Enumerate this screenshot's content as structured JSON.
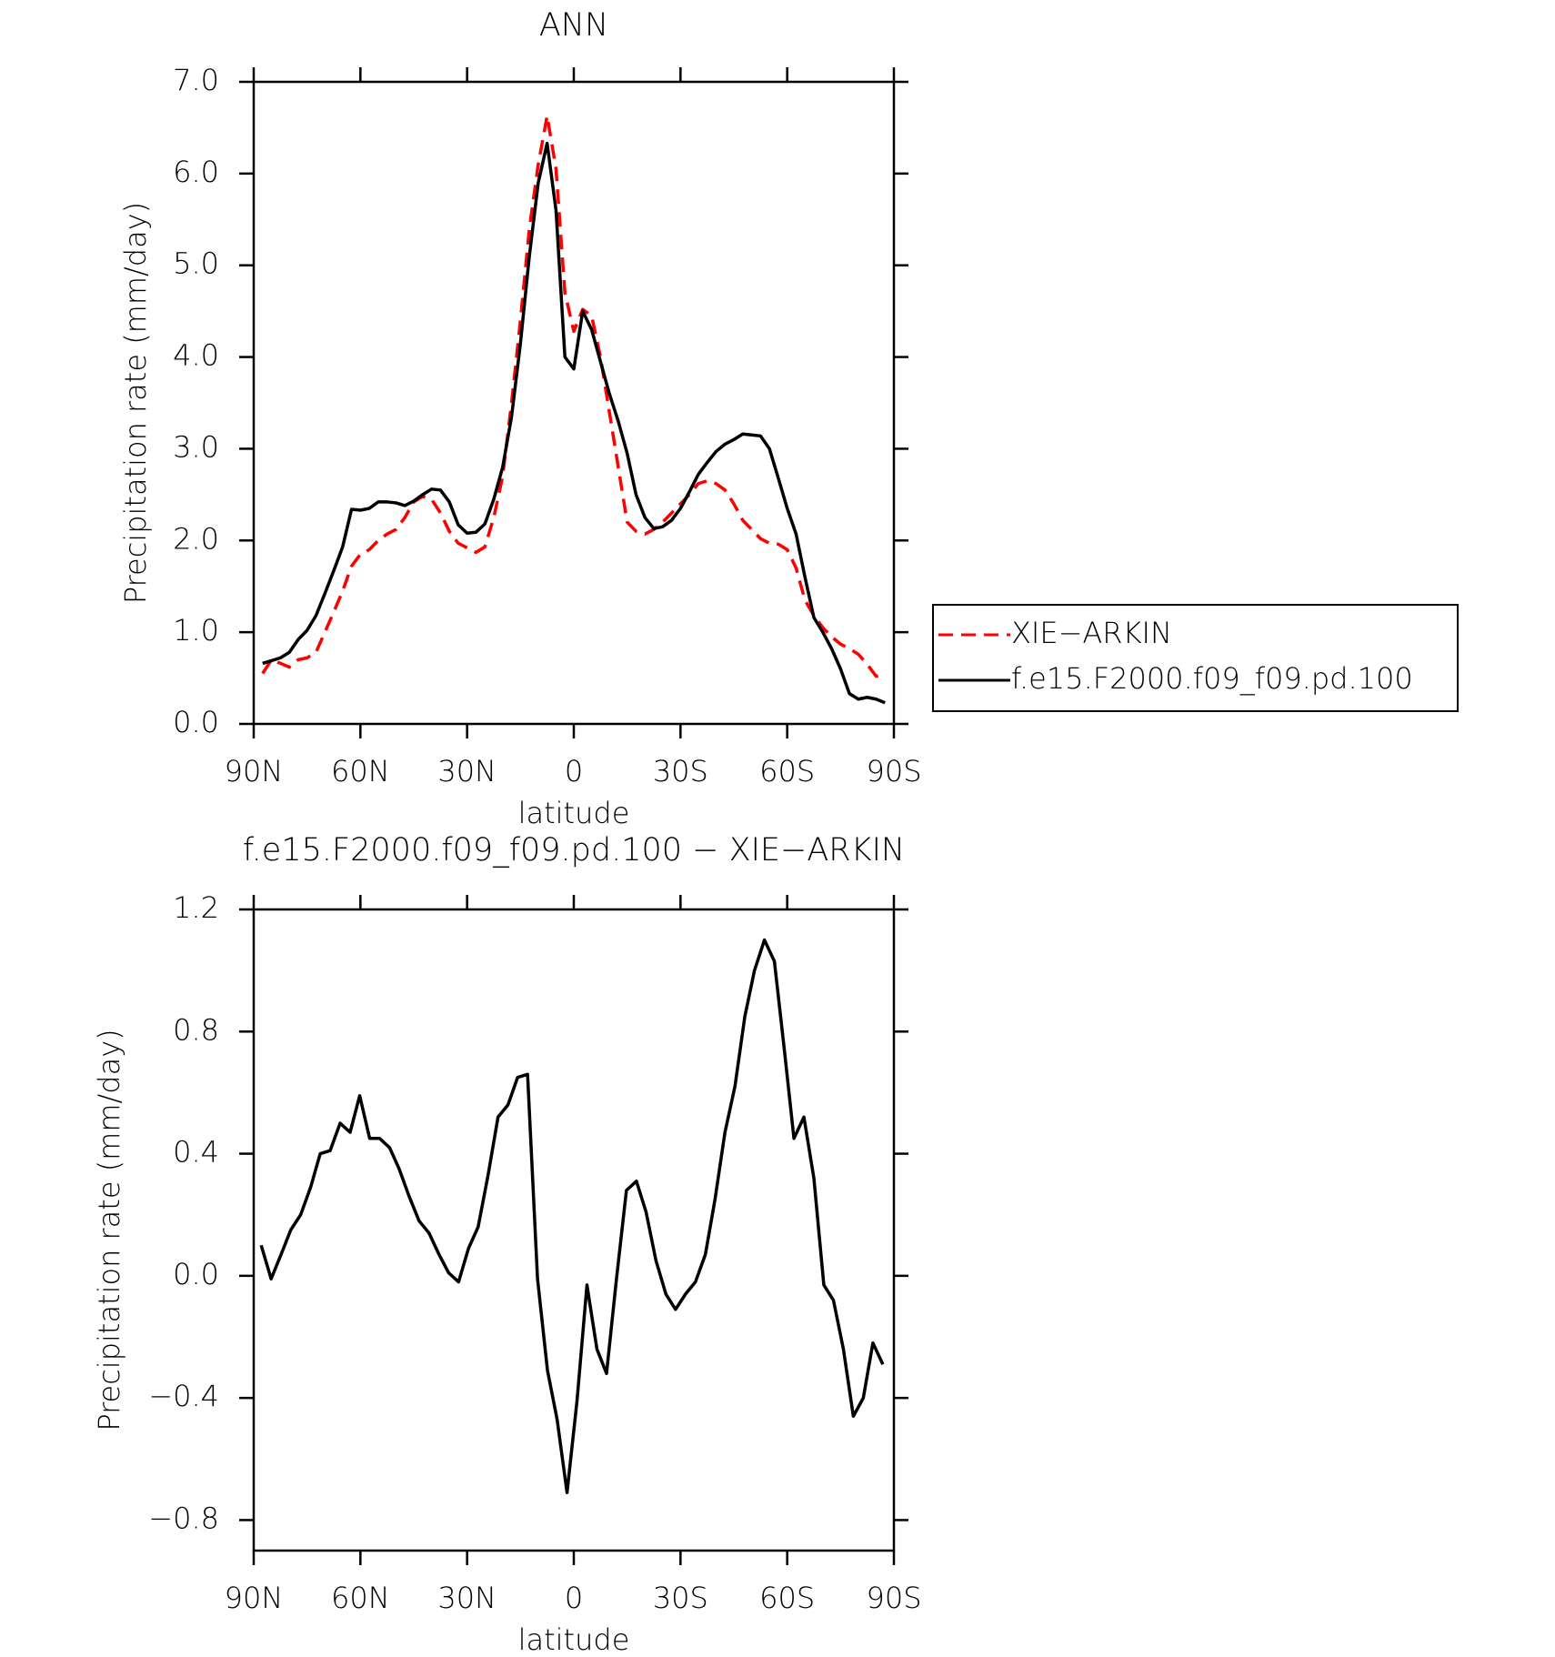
{
  "chart_data": [
    {
      "type": "line",
      "title": "ANN",
      "xlabel": "latitude",
      "ylabel": "Precipitation rate (mm/day)",
      "x": [
        87.5,
        85,
        82.5,
        80,
        77.5,
        75,
        72.5,
        70,
        67.5,
        65,
        62.5,
        60,
        57.5,
        55,
        52.5,
        50,
        47.5,
        45,
        42.5,
        40,
        37.5,
        35,
        32.5,
        30,
        27.5,
        25,
        22.5,
        20,
        17.5,
        15,
        12.5,
        10,
        7.5,
        5,
        2.5,
        0,
        -2.5,
        -5,
        -7.5,
        -10,
        -12.5,
        -15,
        -17.5,
        -20,
        -22.5,
        -25,
        -27.5,
        -30,
        -32.5,
        -35,
        -37.5,
        -40,
        -42.5,
        -45,
        -47.5,
        -50,
        -52.5,
        -55,
        -57.5,
        -60,
        -62.5,
        -65,
        -67.5,
        -70,
        -72.5,
        -75,
        -77.5,
        -80,
        -82.5,
        -85,
        -87.5
      ],
      "series": [
        {
          "name": "XIE−ARKIN",
          "color": "#ff0000",
          "line_style": "dashed",
          "values": [
            0.55,
            0.7,
            0.66,
            0.62,
            0.7,
            0.72,
            0.78,
            1.0,
            1.22,
            1.45,
            1.72,
            1.85,
            1.9,
            2.0,
            2.07,
            2.12,
            2.25,
            2.42,
            2.48,
            2.45,
            2.3,
            2.1,
            1.97,
            1.92,
            1.87,
            1.93,
            2.25,
            2.7,
            3.5,
            4.4,
            5.4,
            6.1,
            6.63,
            6.05,
            4.7,
            4.28,
            4.52,
            4.45,
            4.0,
            3.4,
            2.8,
            2.2,
            2.1,
            2.07,
            2.12,
            2.2,
            2.3,
            2.4,
            2.5,
            2.62,
            2.65,
            2.62,
            2.55,
            2.4,
            2.22,
            2.12,
            2.02,
            1.97,
            1.96,
            1.9,
            1.7,
            1.35,
            1.18,
            1.05,
            0.95,
            0.87,
            0.82,
            0.76,
            0.65,
            0.52,
            0.53
          ]
        },
        {
          "name": "f.e15.F2000.f09_f09.pd.100",
          "color": "#000000",
          "line_style": "solid",
          "values": [
            0.66,
            0.69,
            0.72,
            0.78,
            0.92,
            1.02,
            1.18,
            1.42,
            1.67,
            1.93,
            2.34,
            2.33,
            2.35,
            2.42,
            2.42,
            2.41,
            2.38,
            2.43,
            2.5,
            2.56,
            2.55,
            2.42,
            2.17,
            2.08,
            2.09,
            2.18,
            2.45,
            2.8,
            3.35,
            4.15,
            5.1,
            5.9,
            6.33,
            5.6,
            4.0,
            3.87,
            4.5,
            4.3,
            3.95,
            3.6,
            3.3,
            2.95,
            2.5,
            2.25,
            2.13,
            2.15,
            2.22,
            2.35,
            2.53,
            2.72,
            2.85,
            2.97,
            3.05,
            3.1,
            3.16,
            3.15,
            3.14,
            3.0,
            2.68,
            2.35,
            2.07,
            1.6,
            1.16,
            1.0,
            0.82,
            0.6,
            0.33,
            0.27,
            0.29,
            0.27,
            0.23
          ]
        }
      ],
      "xlim": [
        90,
        -90
      ],
      "xticks": [
        {
          "value": 90,
          "label": "90N"
        },
        {
          "value": 60,
          "label": "60N"
        },
        {
          "value": 30,
          "label": "30N"
        },
        0,
        {
          "value": -30,
          "label": "30S"
        },
        {
          "value": -60,
          "label": "60S"
        },
        {
          "value": -90,
          "label": "90S"
        }
      ],
      "ylim": [
        0,
        7
      ],
      "yticks": [
        {
          "value": 0,
          "label": "0.0"
        },
        {
          "value": 1,
          "label": "1.0"
        },
        {
          "value": 2,
          "label": "2.0"
        },
        {
          "value": 3,
          "label": "3.0"
        },
        {
          "value": 4,
          "label": "4.0"
        },
        {
          "value": 5,
          "label": "5.0"
        },
        {
          "value": 6,
          "label": "6.0"
        },
        {
          "value": 7,
          "label": "7.0"
        }
      ],
      "grid": false,
      "legend": "right"
    },
    {
      "type": "line",
      "title": "f.e15.F2000.f09_f09.pd.100 − XIE−ARKIN",
      "xlabel": "latitude",
      "ylabel": "Precipitation rate (mm/day)",
      "x": [
        87.9,
        85.1,
        82.3,
        79.6,
        76.8,
        74.0,
        71.3,
        68.5,
        65.7,
        62.9,
        60.2,
        57.4,
        54.6,
        51.8,
        49.1,
        46.3,
        43.5,
        40.7,
        37.9,
        35.2,
        32.4,
        29.6,
        26.9,
        24.1,
        21.3,
        18.5,
        15.8,
        13.0,
        10.2,
        7.4,
        4.7,
        1.9,
        -0.9,
        -3.7,
        -6.5,
        -9.2,
        -12.0,
        -14.8,
        -17.6,
        -20.3,
        -23.1,
        -25.9,
        -28.6,
        -31.4,
        -34.2,
        -37.0,
        -39.7,
        -42.5,
        -45.3,
        -48.1,
        -50.8,
        -53.6,
        -56.4,
        -59.2,
        -61.9,
        -64.7,
        -67.5,
        -70.3,
        -73.0,
        -75.8,
        -78.6,
        -81.4,
        -84.1,
        -86.9
      ],
      "values": [
        0.1,
        -0.01,
        0.07,
        0.15,
        0.2,
        0.29,
        0.4,
        0.41,
        0.5,
        0.47,
        0.59,
        0.45,
        0.45,
        0.42,
        0.35,
        0.26,
        0.18,
        0.14,
        0.07,
        0.01,
        -0.02,
        0.09,
        0.16,
        0.33,
        0.52,
        0.56,
        0.65,
        0.66,
        -0.01,
        -0.31,
        -0.47,
        -0.71,
        -0.41,
        -0.03,
        -0.24,
        -0.32,
        -0.01,
        0.28,
        0.31,
        0.21,
        0.05,
        -0.06,
        -0.11,
        -0.06,
        -0.02,
        0.07,
        0.25,
        0.47,
        0.62,
        0.85,
        1.0,
        1.1,
        1.03,
        0.74,
        0.45,
        0.52,
        0.32,
        -0.03,
        -0.08,
        -0.24,
        -0.46,
        -0.4,
        -0.22,
        -0.29
      ],
      "color": "#000000",
      "line_style": "solid",
      "xlim": [
        90,
        -90
      ],
      "xticks": [
        {
          "value": 90,
          "label": "90N"
        },
        {
          "value": 60,
          "label": "60N"
        },
        {
          "value": 30,
          "label": "30N"
        },
        0,
        {
          "value": -30,
          "label": "30S"
        },
        {
          "value": -60,
          "label": "60S"
        },
        {
          "value": -90,
          "label": "90S"
        }
      ],
      "ylim": [
        -0.9,
        1.2
      ],
      "yticks": [
        {
          "value": -0.8,
          "label": "−0.8"
        },
        {
          "value": -0.4,
          "label": "−0.4"
        },
        {
          "value": 0,
          "label": "0.0"
        },
        0.4,
        0.8,
        1.2
      ],
      "grid": false
    }
  ]
}
